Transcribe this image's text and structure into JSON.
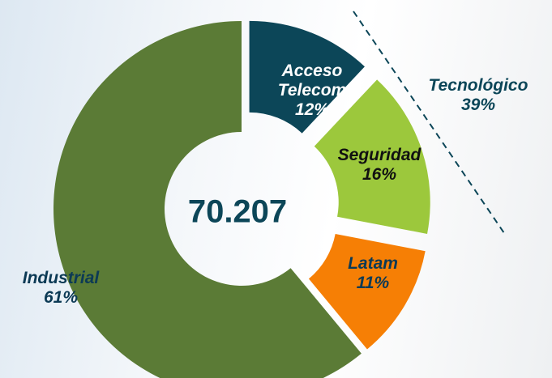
{
  "chart_data": {
    "type": "donut",
    "categories": [
      "Acceso Telecom",
      "Seguridad",
      "Latam",
      "Industrial"
    ],
    "values": [
      12,
      16,
      11,
      61
    ],
    "value_labels": [
      "12%",
      "16%",
      "11%",
      "61%"
    ],
    "colors": [
      "#0c4658",
      "#9cc83c",
      "#f67f05",
      "#5b7b36"
    ],
    "center_label": "70.207",
    "annotations": [
      {
        "label": "Tecnológico",
        "value": 39,
        "value_label": "39%"
      }
    ]
  }
}
